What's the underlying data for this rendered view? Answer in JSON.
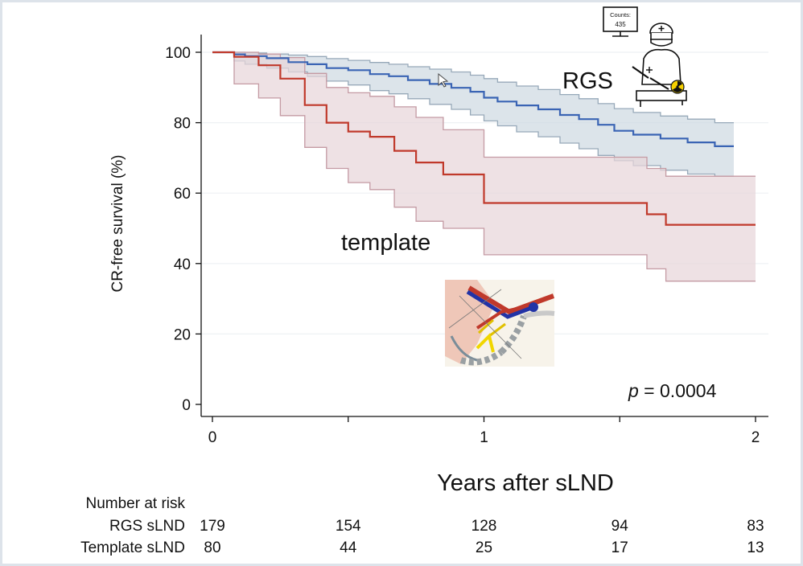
{
  "chart_data": {
    "type": "line",
    "subtype": "kaplan-meier step curve with confidence bands",
    "ylabel": "CR-free survival (%)",
    "xlabel": "Years after sLND",
    "xlim": [
      0,
      2
    ],
    "ylim": [
      0,
      100
    ],
    "x_ticks": [
      0,
      1,
      2
    ],
    "x_minor_ticks": [
      0.5,
      1.5
    ],
    "y_ticks": [
      0,
      20,
      40,
      60,
      80,
      100
    ],
    "grid": "horizontal",
    "annotation": {
      "p_symbol": "p",
      "p_rest": " = 0.0004"
    },
    "series": [
      {
        "name": "RGS",
        "color": "#3a64b4",
        "band_color": "#cfd9e2",
        "band_edge_color": "#97a9b9",
        "estimate": [
          [
            0,
            100
          ],
          [
            0.08,
            99.4
          ],
          [
            0.12,
            98.9
          ],
          [
            0.2,
            98.3
          ],
          [
            0.28,
            97.2
          ],
          [
            0.35,
            96.6
          ],
          [
            0.42,
            95.5
          ],
          [
            0.5,
            94.9
          ],
          [
            0.58,
            93.8
          ],
          [
            0.65,
            93.2
          ],
          [
            0.72,
            92.1
          ],
          [
            0.8,
            91.0
          ],
          [
            0.88,
            89.9
          ],
          [
            0.95,
            88.8
          ],
          [
            1.0,
            87.1
          ],
          [
            1.05,
            86.0
          ],
          [
            1.12,
            84.9
          ],
          [
            1.2,
            83.8
          ],
          [
            1.28,
            82.2
          ],
          [
            1.35,
            81.0
          ],
          [
            1.42,
            79.4
          ],
          [
            1.48,
            77.7
          ],
          [
            1.55,
            76.6
          ],
          [
            1.65,
            75.5
          ],
          [
            1.75,
            74.4
          ],
          [
            1.85,
            73.3
          ],
          [
            1.92,
            73.3
          ]
        ],
        "lower": [
          [
            0,
            100
          ],
          [
            0.08,
            97.5
          ],
          [
            0.12,
            96.6
          ],
          [
            0.2,
            95.5
          ],
          [
            0.28,
            94.4
          ],
          [
            0.35,
            93.1
          ],
          [
            0.42,
            91.8
          ],
          [
            0.5,
            90.7
          ],
          [
            0.58,
            89.1
          ],
          [
            0.65,
            88.2
          ],
          [
            0.72,
            86.8
          ],
          [
            0.8,
            85.2
          ],
          [
            0.88,
            83.8
          ],
          [
            0.95,
            82.2
          ],
          [
            1.0,
            80.5
          ],
          [
            1.05,
            79.1
          ],
          [
            1.12,
            77.4
          ],
          [
            1.2,
            76.0
          ],
          [
            1.28,
            74.2
          ],
          [
            1.35,
            72.6
          ],
          [
            1.42,
            70.7
          ],
          [
            1.48,
            69.2
          ],
          [
            1.55,
            67.8
          ],
          [
            1.65,
            66.5
          ],
          [
            1.75,
            65.4
          ],
          [
            1.85,
            64.8
          ],
          [
            1.92,
            64.8
          ]
        ],
        "upper": [
          [
            0,
            100
          ],
          [
            0.08,
            100
          ],
          [
            0.12,
            99.8
          ],
          [
            0.2,
            99.5
          ],
          [
            0.28,
            99.2
          ],
          [
            0.35,
            98.8
          ],
          [
            0.42,
            98.2
          ],
          [
            0.5,
            97.7
          ],
          [
            0.58,
            97.1
          ],
          [
            0.65,
            96.6
          ],
          [
            0.72,
            95.9
          ],
          [
            0.8,
            95.2
          ],
          [
            0.88,
            94.4
          ],
          [
            0.95,
            93.5
          ],
          [
            1.0,
            92.5
          ],
          [
            1.05,
            91.5
          ],
          [
            1.12,
            90.4
          ],
          [
            1.2,
            89.4
          ],
          [
            1.28,
            88.0
          ],
          [
            1.35,
            86.8
          ],
          [
            1.42,
            85.4
          ],
          [
            1.48,
            84.0
          ],
          [
            1.55,
            82.9
          ],
          [
            1.65,
            81.9
          ],
          [
            1.75,
            81.0
          ],
          [
            1.85,
            80.0
          ],
          [
            1.92,
            80.0
          ]
        ],
        "label": "RGS"
      },
      {
        "name": "template",
        "color": "#c0392b",
        "band_color": "#e8d6da",
        "band_edge_color": "#c49aa3",
        "estimate": [
          [
            0,
            100
          ],
          [
            0.08,
            98.7
          ],
          [
            0.17,
            96.3
          ],
          [
            0.25,
            92.5
          ],
          [
            0.34,
            85.0
          ],
          [
            0.42,
            80.0
          ],
          [
            0.5,
            77.5
          ],
          [
            0.58,
            76.0
          ],
          [
            0.67,
            72.0
          ],
          [
            0.75,
            68.7
          ],
          [
            0.85,
            65.3
          ],
          [
            1.0,
            57.2
          ],
          [
            1.25,
            57.2
          ],
          [
            1.4,
            57.2
          ],
          [
            1.6,
            54.0
          ],
          [
            1.67,
            51.0
          ],
          [
            2.0,
            51.0
          ]
        ],
        "lower": [
          [
            0,
            100
          ],
          [
            0.08,
            91.0
          ],
          [
            0.17,
            87.0
          ],
          [
            0.25,
            82.0
          ],
          [
            0.34,
            73.0
          ],
          [
            0.42,
            67.0
          ],
          [
            0.5,
            63.0
          ],
          [
            0.58,
            61.0
          ],
          [
            0.67,
            56.0
          ],
          [
            0.75,
            52.0
          ],
          [
            0.85,
            50.0
          ],
          [
            1.0,
            42.5
          ],
          [
            1.25,
            42.5
          ],
          [
            1.4,
            42.5
          ],
          [
            1.6,
            38.5
          ],
          [
            1.67,
            35.0
          ],
          [
            2.0,
            35.0
          ]
        ],
        "upper": [
          [
            0,
            100
          ],
          [
            0.08,
            100
          ],
          [
            0.17,
            99.5
          ],
          [
            0.25,
            98.5
          ],
          [
            0.34,
            94.0
          ],
          [
            0.42,
            90.0
          ],
          [
            0.5,
            88.5
          ],
          [
            0.58,
            87.5
          ],
          [
            0.67,
            84.5
          ],
          [
            0.75,
            81.5
          ],
          [
            0.85,
            78.0
          ],
          [
            1.0,
            70.2
          ],
          [
            1.25,
            70.2
          ],
          [
            1.4,
            70.2
          ],
          [
            1.6,
            67.0
          ],
          [
            1.67,
            64.8
          ],
          [
            2.0,
            64.8
          ]
        ],
        "label": "template"
      }
    ],
    "risk_table": {
      "heading": "Number at risk",
      "times": [
        0,
        0.5,
        1,
        1.5,
        2
      ],
      "rows": [
        {
          "label": "RGS sLND",
          "values": [
            "179",
            "154",
            "128",
            "94",
            "83"
          ]
        },
        {
          "label": "Template sLND",
          "values": [
            "80",
            "44",
            "25",
            "17",
            "13"
          ]
        }
      ]
    },
    "icons": [
      {
        "name": "surgeon-with-gamma-probe-icon",
        "monitor_text": [
          "Counts:",
          "435"
        ]
      },
      {
        "name": "pelvic-anatomy-illustration-icon"
      }
    ]
  }
}
